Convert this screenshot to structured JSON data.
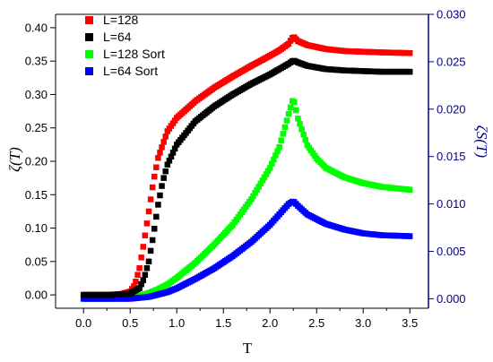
{
  "chart_data": {
    "type": "scatter",
    "xlabel": "T",
    "ylabel_left": "ζ(T)",
    "ylabel_right": "ζS(T)",
    "xlim": [
      -0.3,
      3.7
    ],
    "ylim_left": [
      -0.02,
      0.42
    ],
    "ylim_right": [
      -0.001,
      0.03
    ],
    "x_ticks": [
      "0.0",
      "0.5",
      "1.0",
      "1.5",
      "2.0",
      "2.5",
      "3.0",
      "3.5"
    ],
    "y_left_ticks": [
      "0.00",
      "0.05",
      "0.10",
      "0.15",
      "0.20",
      "0.25",
      "0.30",
      "0.35",
      "0.40"
    ],
    "y_right_ticks": [
      "0.000",
      "0.005",
      "0.010",
      "0.015",
      "0.020",
      "0.025",
      "0.030"
    ],
    "grid": false,
    "legend_position": "top-left",
    "colors": {
      "L128": "#ff0000",
      "L64": "#000000",
      "L128sort": "#00ff00",
      "L64sort": "#0000ff",
      "left_axis": "#000000",
      "right_axis": "#00008b"
    },
    "series": [
      {
        "name": "L=128",
        "axis": "left",
        "color": "#ff0000",
        "points": [
          [
            0.0,
            0.0
          ],
          [
            0.2,
            0.0
          ],
          [
            0.4,
            0.001
          ],
          [
            0.5,
            0.005
          ],
          [
            0.55,
            0.015
          ],
          [
            0.6,
            0.04
          ],
          [
            0.65,
            0.08
          ],
          [
            0.7,
            0.125
          ],
          [
            0.75,
            0.17
          ],
          [
            0.8,
            0.205
          ],
          [
            0.9,
            0.245
          ],
          [
            1.0,
            0.265
          ],
          [
            1.2,
            0.29
          ],
          [
            1.4,
            0.31
          ],
          [
            1.6,
            0.327
          ],
          [
            1.8,
            0.343
          ],
          [
            2.0,
            0.358
          ],
          [
            2.1,
            0.366
          ],
          [
            2.2,
            0.376
          ],
          [
            2.25,
            0.387
          ],
          [
            2.3,
            0.38
          ],
          [
            2.4,
            0.374
          ],
          [
            2.6,
            0.368
          ],
          [
            2.8,
            0.365
          ],
          [
            3.0,
            0.364
          ],
          [
            3.2,
            0.363
          ],
          [
            3.5,
            0.362
          ]
        ]
      },
      {
        "name": "L=64",
        "axis": "left",
        "color": "#000000",
        "points": [
          [
            0.0,
            0.0
          ],
          [
            0.3,
            0.0
          ],
          [
            0.5,
            0.002
          ],
          [
            0.6,
            0.01
          ],
          [
            0.65,
            0.025
          ],
          [
            0.7,
            0.05
          ],
          [
            0.75,
            0.09
          ],
          [
            0.8,
            0.135
          ],
          [
            0.85,
            0.17
          ],
          [
            0.9,
            0.195
          ],
          [
            1.0,
            0.225
          ],
          [
            1.2,
            0.26
          ],
          [
            1.4,
            0.282
          ],
          [
            1.6,
            0.3
          ],
          [
            1.8,
            0.316
          ],
          [
            2.0,
            0.33
          ],
          [
            2.1,
            0.338
          ],
          [
            2.2,
            0.346
          ],
          [
            2.25,
            0.351
          ],
          [
            2.3,
            0.348
          ],
          [
            2.4,
            0.343
          ],
          [
            2.6,
            0.338
          ],
          [
            2.8,
            0.336
          ],
          [
            3.0,
            0.335
          ],
          [
            3.2,
            0.334
          ],
          [
            3.5,
            0.334
          ]
        ]
      },
      {
        "name": "L=128 Sort",
        "axis": "right",
        "color": "#00ff00",
        "points": [
          [
            0.0,
            0.0
          ],
          [
            0.3,
            0.0
          ],
          [
            0.5,
            0.0001
          ],
          [
            0.6,
            0.0003
          ],
          [
            0.7,
            0.0006
          ],
          [
            0.8,
            0.001
          ],
          [
            0.9,
            0.0015
          ],
          [
            1.0,
            0.0022
          ],
          [
            1.2,
            0.0038
          ],
          [
            1.4,
            0.0057
          ],
          [
            1.6,
            0.0078
          ],
          [
            1.8,
            0.0105
          ],
          [
            2.0,
            0.0138
          ],
          [
            2.1,
            0.016
          ],
          [
            2.2,
            0.0195
          ],
          [
            2.25,
            0.0212
          ],
          [
            2.3,
            0.019
          ],
          [
            2.4,
            0.0162
          ],
          [
            2.5,
            0.0148
          ],
          [
            2.6,
            0.0138
          ],
          [
            2.8,
            0.0128
          ],
          [
            3.0,
            0.0122
          ],
          [
            3.2,
            0.0118
          ],
          [
            3.5,
            0.0115
          ]
        ]
      },
      {
        "name": "L=64 Sort",
        "axis": "right",
        "color": "#0000ff",
        "points": [
          [
            0.0,
            0.0
          ],
          [
            0.3,
            0.0
          ],
          [
            0.5,
            0.0
          ],
          [
            0.7,
            0.0002
          ],
          [
            0.9,
            0.0007
          ],
          [
            1.0,
            0.0011
          ],
          [
            1.2,
            0.0021
          ],
          [
            1.4,
            0.0032
          ],
          [
            1.6,
            0.0045
          ],
          [
            1.8,
            0.006
          ],
          [
            2.0,
            0.0078
          ],
          [
            2.1,
            0.0089
          ],
          [
            2.2,
            0.01
          ],
          [
            2.25,
            0.0103
          ],
          [
            2.3,
            0.0098
          ],
          [
            2.4,
            0.0089
          ],
          [
            2.6,
            0.0079
          ],
          [
            2.8,
            0.0073
          ],
          [
            3.0,
            0.0069
          ],
          [
            3.2,
            0.0067
          ],
          [
            3.5,
            0.0066
          ]
        ]
      }
    ]
  },
  "legend": [
    {
      "label": "L=128",
      "color": "#ff0000"
    },
    {
      "label": "L=64",
      "color": "#000000"
    },
    {
      "label": "L=128 Sort",
      "color": "#00ff00"
    },
    {
      "label": "L=64 Sort",
      "color": "#0000ff"
    }
  ]
}
